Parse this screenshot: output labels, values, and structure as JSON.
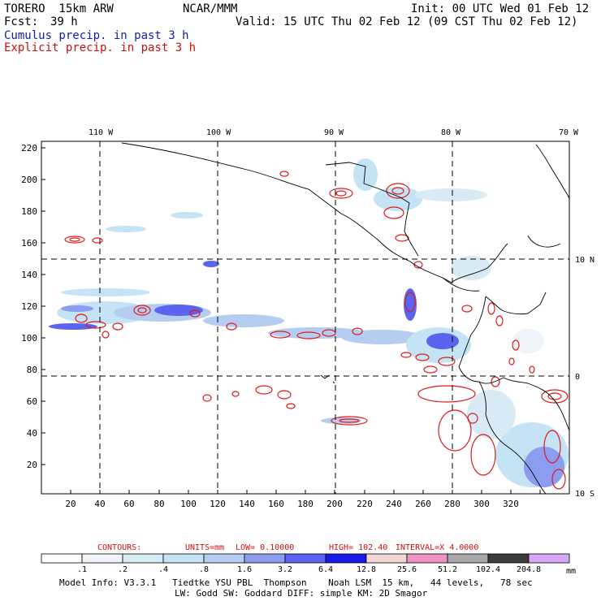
{
  "header": {
    "model": "TORERO  15km ARW",
    "center": "NCAR/MMM",
    "init": "Init: 00 UTC Wed 01 Feb 12",
    "fcst_label": "Fcst:",
    "fcst_hours": "39 h",
    "valid": "Valid: 15 UTC Thu 02 Feb 12 (09 CST Thu 02 Feb 12)",
    "field1": "Cumulus precip. in past 3 h",
    "field2": "Explicit precip. in past 3 h"
  },
  "map": {
    "lon_labels": [
      "110 W",
      "100 W",
      "90 W",
      "80 W",
      "70 W"
    ],
    "lat_labels": [
      "10 N",
      "0",
      "10 S"
    ],
    "x_ticks": [
      "20",
      "40",
      "60",
      "80",
      "100",
      "120",
      "140",
      "160",
      "180",
      "200",
      "220",
      "240",
      "260",
      "280",
      "300",
      "320"
    ],
    "y_ticks": [
      "20",
      "40",
      "60",
      "80",
      "100",
      "120",
      "140",
      "160",
      "180",
      "200",
      "220"
    ]
  },
  "contours": {
    "label": "CONTOURS:",
    "units": "UNITS=mm",
    "low": "LOW= 0.10000",
    "high": "HIGH=  102.40",
    "interval": "INTERVAL=X  4.0000"
  },
  "colorbar": {
    "unit": "mm",
    "labels": [
      ".1",
      ".2",
      ".4",
      ".8",
      "1.6",
      "3.2",
      "6.4",
      "12.8",
      "25.6",
      "51.2",
      "102.4",
      "204.8"
    ],
    "colors": [
      "#ffffff",
      "#eef4fa",
      "#d8ebf5",
      "#c4e3f4",
      "#b4cdf0",
      "#8c9cf0",
      "#5a64ee",
      "#1a1ae8",
      "#f2d6d6",
      "#ee92c2",
      "#a8a8a8",
      "#3c3c3c",
      "#d8a8f8"
    ]
  },
  "footer": {
    "line1": "Model Info: V3.3.1   Tiedtke YSU PBL  Thompson    Noah LSM  15 km,   44 levels,   78 sec",
    "line2": "LW: Godd SW: Goddard DIFF: simple KM: 2D Smagor"
  }
}
